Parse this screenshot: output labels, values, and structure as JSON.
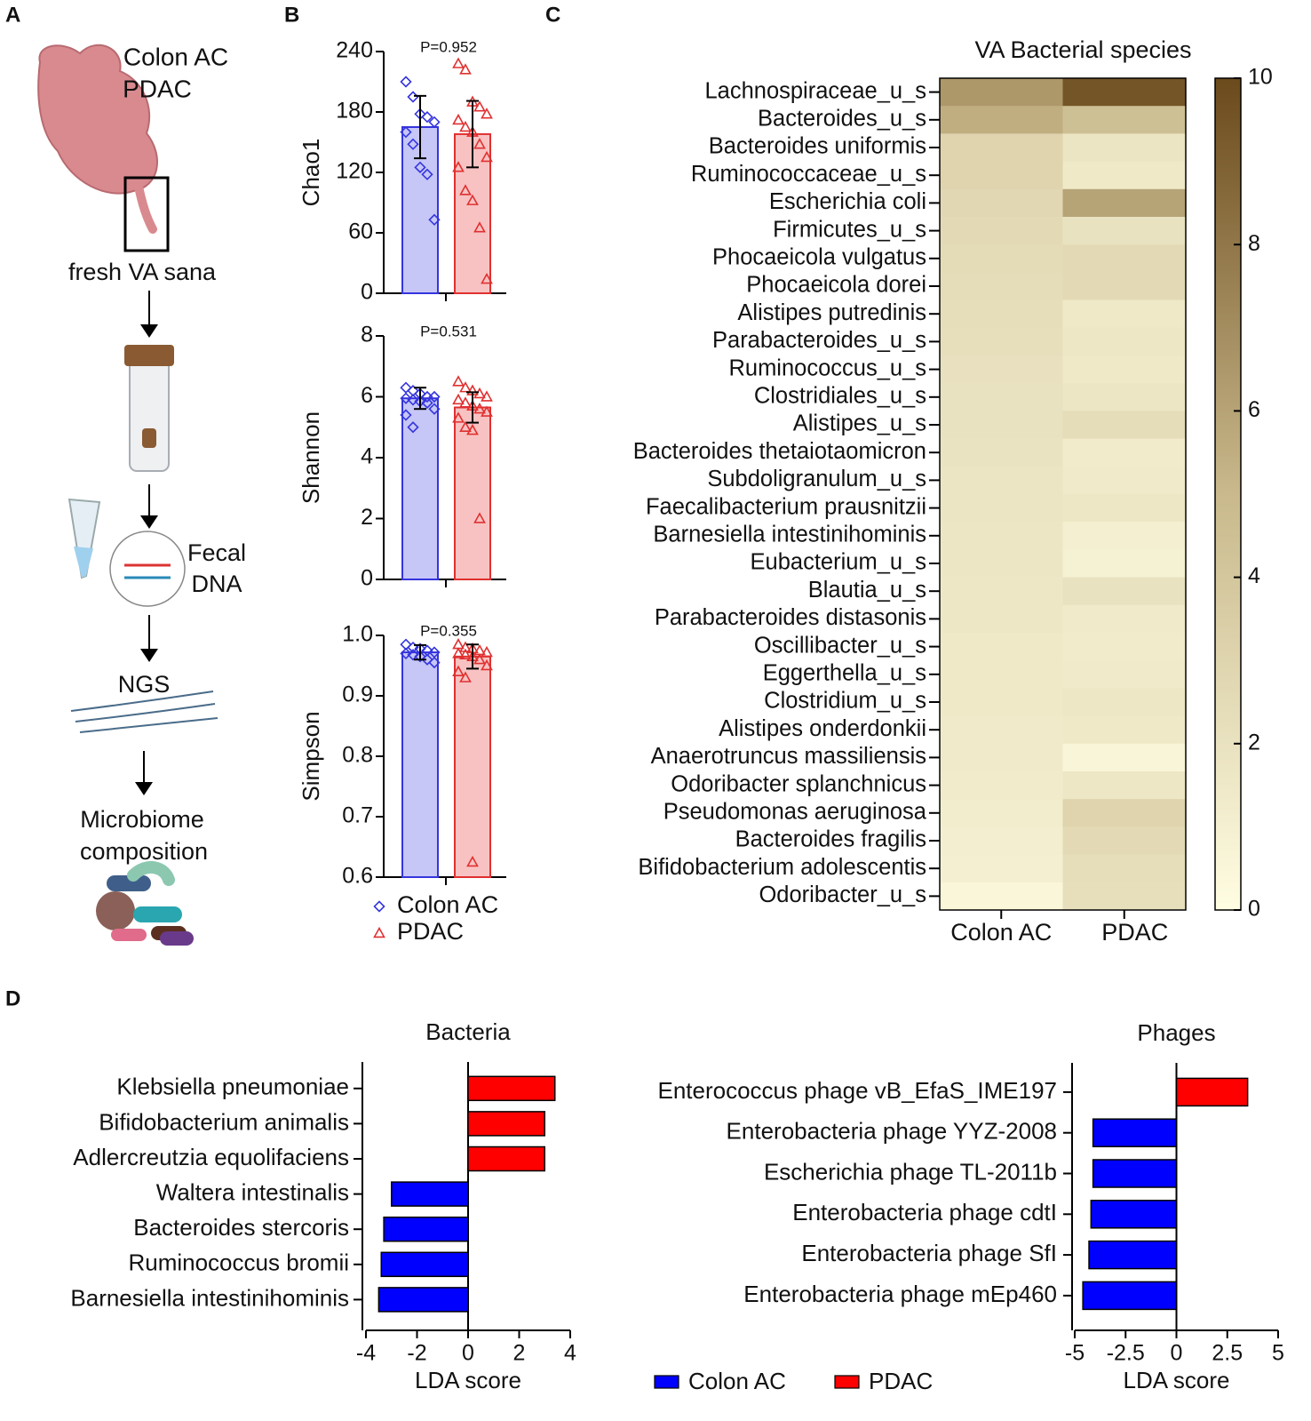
{
  "panel_labels": [
    "A",
    "B",
    "C",
    "D"
  ],
  "illustration": {
    "groups": [
      {
        "name": "Colon AC",
        "color": "#1f1fe0"
      },
      {
        "name": "PDAC",
        "color": "#e8231f"
      }
    ],
    "sample": "fresh VA sana",
    "dna": [
      "Fecal",
      "DNA"
    ],
    "ngs": "NGS",
    "result": [
      "Microbiome",
      "composition"
    ]
  },
  "chart_data": [
    {
      "type": "bar_scatter",
      "ylabel": "Chao1",
      "annotation": "P=0.952",
      "ylim": [
        0,
        240
      ],
      "yticks": [
        0,
        60,
        120,
        180,
        240
      ],
      "series": [
        {
          "color": "#3535dd",
          "fill": "#c6c6f7",
          "marker": "diamond",
          "value": 165,
          "error": 31,
          "points": [
            210,
            195,
            178,
            175,
            170,
            160,
            148,
            125,
            118,
            73
          ]
        },
        {
          "color": "#e03030",
          "fill": "#f8c2c2",
          "marker": "triangle",
          "value": 158,
          "error": 33,
          "points": [
            228,
            222,
            190,
            185,
            178,
            172,
            165,
            160,
            148,
            135,
            125,
            102,
            92,
            65,
            14
          ]
        }
      ]
    },
    {
      "type": "bar_scatter",
      "ylabel": "Shannon",
      "annotation": "P=0.531",
      "ylim": [
        0,
        8
      ],
      "yticks": [
        0,
        2,
        4,
        6,
        8
      ],
      "series": [
        {
          "color": "#3535dd",
          "fill": "#c6c6f7",
          "marker": "diamond",
          "value": 5.95,
          "error": 0.35,
          "points": [
            6.3,
            6.2,
            6.1,
            6.0,
            6.0,
            5.95,
            5.9,
            5.85,
            5.8,
            5.6,
            5.4,
            5.0
          ]
        },
        {
          "color": "#e03030",
          "fill": "#f8c2c2",
          "marker": "triangle",
          "value": 5.65,
          "error": 0.5,
          "points": [
            6.5,
            6.3,
            6.2,
            6.1,
            6.0,
            5.9,
            5.8,
            5.7,
            5.6,
            5.5,
            5.3,
            5.0,
            4.9,
            2.0
          ]
        }
      ]
    },
    {
      "type": "bar_scatter",
      "ylabel": "Simpson",
      "annotation": "P=0.355",
      "ylim": [
        0.6,
        1
      ],
      "yticks": [
        0.6,
        0.7,
        0.8,
        0.9,
        {
          "value": 1,
          "label": "1.0"
        }
      ],
      "series": [
        {
          "name": "Colon AC",
          "color": "#3535dd",
          "fill": "#c6c6f7",
          "marker": "diamond",
          "value": 0.972,
          "error": 0.012,
          "points": [
            0.985,
            0.98,
            0.978,
            0.975,
            0.972,
            0.97,
            0.968,
            0.965,
            0.96,
            0.955
          ]
        },
        {
          "name": "PDAC",
          "color": "#e03030",
          "fill": "#f8c2c2",
          "marker": "triangle",
          "value": 0.965,
          "error": 0.02,
          "points": [
            0.985,
            0.98,
            0.978,
            0.975,
            0.972,
            0.97,
            0.968,
            0.965,
            0.96,
            0.95,
            0.94,
            0.93,
            0.625
          ]
        }
      ]
    },
    {
      "type": "heatmap",
      "title": "VA Bacterial species",
      "columns": [
        "Colon AC",
        "PDAC"
      ],
      "rows": [
        "Lachnospiraceae_u_s",
        "Bacteroides_u_s",
        "Bacteroides uniformis",
        "Ruminococcaceae_u_s",
        "Escherichia coli",
        "Firmicutes_u_s",
        "Phocaeicola vulgatus",
        "Phocaeicola dorei",
        "Alistipes putredinis",
        "Parabacteroides_u_s",
        "Ruminococcus_u_s",
        "Clostridiales_u_s",
        "Alistipes_u_s",
        "Bacteroides thetaiotaomicron",
        "Subdoligranulum_u_s",
        "Faecalibacterium prausnitzii",
        "Barnesiella intestinihominis",
        "Eubacterium_u_s",
        "Blautia_u_s",
        "Parabacteroides distasonis",
        "Oscillibacter_u_s",
        "Eggerthella_u_s",
        "Clostridium_u_s",
        "Alistipes onderdonkii",
        "Anaerotruncus massiliensis",
        "Odoribacter splanchnicus",
        "Pseudomonas aeruginosa",
        "Bacteroides fragilis",
        "Bifidobacterium adolescentis",
        "Odoribacter_u_s"
      ],
      "values": [
        [
          6.5,
          9.5
        ],
        [
          5.5,
          4.5
        ],
        [
          3.0,
          1.8
        ],
        [
          3.0,
          1.5
        ],
        [
          2.8,
          6.0
        ],
        [
          2.6,
          2.0
        ],
        [
          2.5,
          2.6
        ],
        [
          2.4,
          2.6
        ],
        [
          2.3,
          1.5
        ],
        [
          2.2,
          1.6
        ],
        [
          2.1,
          1.5
        ],
        [
          2.0,
          1.7
        ],
        [
          2.0,
          2.4
        ],
        [
          1.9,
          1.3
        ],
        [
          1.8,
          1.4
        ],
        [
          1.8,
          1.6
        ],
        [
          1.7,
          1.0
        ],
        [
          1.7,
          0.9
        ],
        [
          1.6,
          2.0
        ],
        [
          1.6,
          1.4
        ],
        [
          1.5,
          1.3
        ],
        [
          1.5,
          1.4
        ],
        [
          1.5,
          1.6
        ],
        [
          1.4,
          1.5
        ],
        [
          1.4,
          0.6
        ],
        [
          1.3,
          1.6
        ],
        [
          1.2,
          3.0
        ],
        [
          1.1,
          2.6
        ],
        [
          1.0,
          2.3
        ],
        [
          0.5,
          2.2
        ]
      ],
      "clim": [
        0,
        10
      ],
      "cticks": [
        0,
        2,
        4,
        6,
        8,
        10
      ],
      "colorscale": [
        "#fffde2",
        "#c9b98c",
        "#6b4a1c"
      ]
    },
    {
      "type": "barh",
      "title": "Bacteria",
      "xlabel": "LDA score",
      "categories": [
        "Klebsiella pneumoniae",
        "Bifidobacterium animalis",
        "Adlercreutzia equolifaciens",
        "Waltera intestinalis",
        "Bacteroides stercoris",
        "Ruminococcus bromii",
        "Barnesiella intestinihominis"
      ],
      "values": [
        3.4,
        3.0,
        3.0,
        -3.0,
        -3.3,
        -3.4,
        -3.5
      ],
      "colors": [
        "#ff0000",
        "#ff0000",
        "#ff0000",
        "#0000ff",
        "#0000ff",
        "#0000ff",
        "#0000ff"
      ],
      "xlim": [
        -4,
        4
      ],
      "xticks": [
        -4,
        -2,
        0,
        2,
        4
      ]
    },
    {
      "type": "barh",
      "title": "Phages",
      "xlabel": "LDA score",
      "categories": [
        "Enterococcus phage vB_EfaS_IME197",
        "Enterobacteria phage YYZ-2008",
        "Escherichia phage TL-2011b",
        "Enterobacteria phage cdtI",
        "Enterobacteria phage SfI",
        "Enterobacteria phage mEp460"
      ],
      "values": [
        3.5,
        -4.1,
        -4.1,
        -4.2,
        -4.3,
        -4.6
      ],
      "colors": [
        "#ff0000",
        "#0000ff",
        "#0000ff",
        "#0000ff",
        "#0000ff",
        "#0000ff"
      ],
      "xlim": [
        -5,
        5
      ],
      "xticks": [
        -5,
        -2.5,
        0,
        2.5,
        5
      ],
      "legend": [
        {
          "name": "Colon AC",
          "color": "#0000ff"
        },
        {
          "name": "PDAC",
          "color": "#ff0000"
        }
      ]
    }
  ]
}
